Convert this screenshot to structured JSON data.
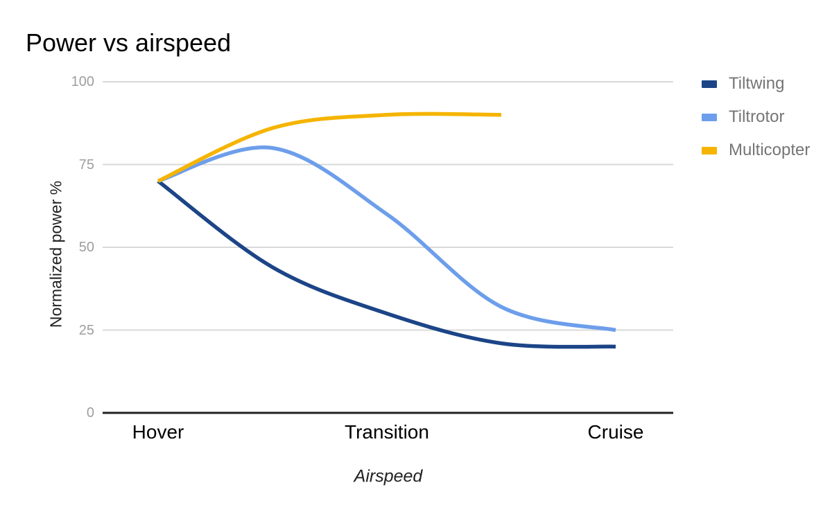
{
  "chart_data": {
    "type": "line",
    "smooth": true,
    "title": "Power vs airspeed",
    "xlabel": "Airspeed",
    "ylabel": "Normalized power %",
    "categories": [
      "Hover",
      "",
      "Transition",
      "",
      "Cruise"
    ],
    "x_tick_labels": [
      {
        "index": 0,
        "label": "Hover"
      },
      {
        "index": 2,
        "label": "Transition"
      },
      {
        "index": 4,
        "label": "Cruise"
      }
    ],
    "series": [
      {
        "name": "Tiltwing",
        "color": "#1c4587",
        "values": [
          70,
          44,
          30,
          21,
          20
        ]
      },
      {
        "name": "Tiltrotor",
        "color": "#6d9eeb",
        "values": [
          70,
          80,
          60,
          32,
          25
        ]
      },
      {
        "name": "Multicopter",
        "color": "#f5b400",
        "values": [
          70,
          86,
          90,
          90,
          null
        ]
      }
    ],
    "ylim": [
      0,
      100
    ],
    "yticks": [
      0,
      25,
      50,
      75,
      100
    ],
    "grid": true,
    "legend_position": "right",
    "colors": {
      "background": "#ffffff",
      "title_text": "#000000",
      "tick_label": "#9e9e9e",
      "category_label": "#000000",
      "axis_title": "#212121",
      "legend_text": "#757575",
      "gridline": "#d9d9d9",
      "baseline": "#212121"
    }
  }
}
